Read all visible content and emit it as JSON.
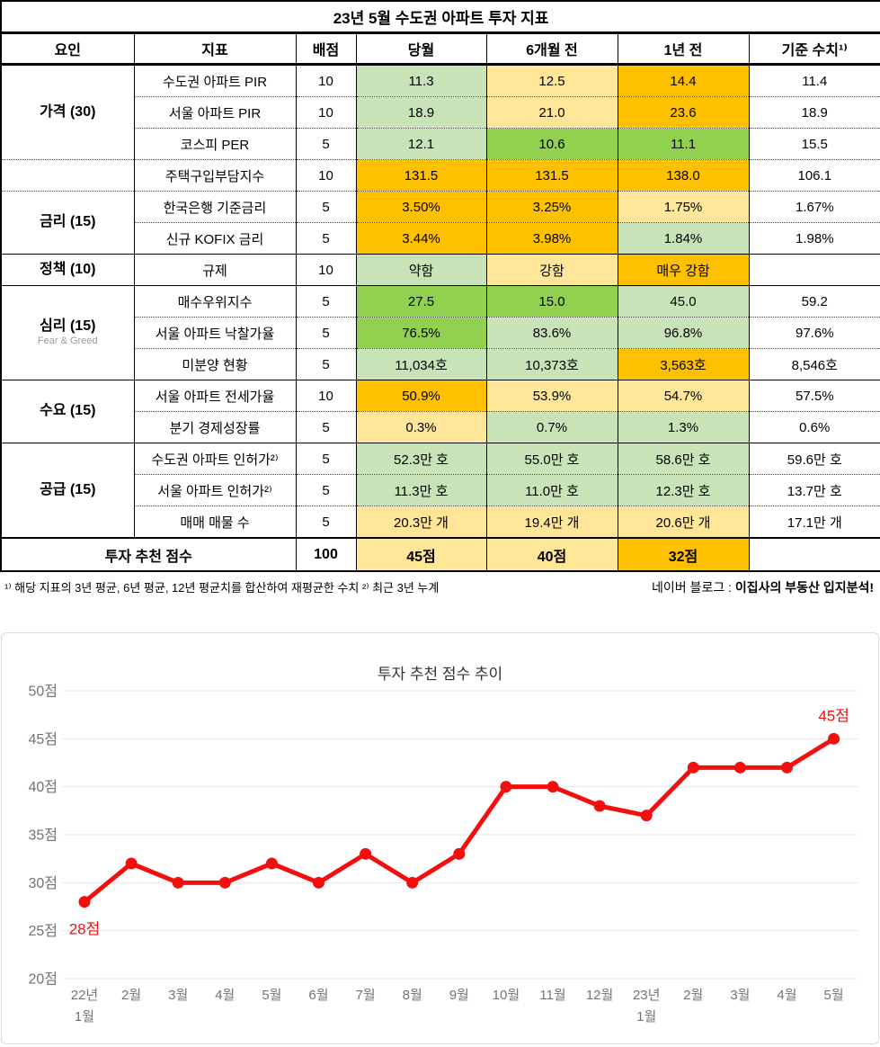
{
  "colors": {
    "green": "#92d050",
    "light_green": "#c9e3b9",
    "light_yellow": "#ffe699",
    "orange": "#ffc000",
    "none": "#ffffff"
  },
  "table": {
    "title": "23년 5월 수도권 아파트 투자 지표",
    "columns": [
      "요인",
      "지표",
      "배점",
      "당월",
      "6개월 전",
      "1년 전",
      "기준 수치¹⁾"
    ],
    "rows": [
      {
        "factor": {
          "label": "가격 (30)",
          "rowspan": 3
        },
        "indicator": "수도권 아파트 PIR",
        "points": "10",
        "values": [
          {
            "text": "11.3",
            "color": "light_green"
          },
          {
            "text": "12.5",
            "color": "light_yellow"
          },
          {
            "text": "14.4",
            "color": "orange"
          }
        ],
        "base": "11.4",
        "sep": "dotted"
      },
      {
        "indicator": "서울 아파트 PIR",
        "points": "10",
        "values": [
          {
            "text": "18.9",
            "color": "light_green"
          },
          {
            "text": "21.0",
            "color": "light_yellow"
          },
          {
            "text": "23.6",
            "color": "orange"
          }
        ],
        "base": "18.9",
        "sep": "dotted"
      },
      {
        "indicator": "코스피 PER",
        "points": "5",
        "values": [
          {
            "text": "12.1",
            "color": "light_green"
          },
          {
            "text": "10.6",
            "color": "green"
          },
          {
            "text": "11.1",
            "color": "green"
          }
        ],
        "base": "15.5",
        "sep": "dotted"
      },
      {
        "factor": {
          "label": "",
          "rowspan": 1
        },
        "indicator": "주택구입부담지수",
        "points": "10",
        "values": [
          {
            "text": "131.5",
            "color": "orange"
          },
          {
            "text": "131.5",
            "color": "orange"
          },
          {
            "text": "138.0",
            "color": "orange"
          }
        ],
        "base": "106.1",
        "sep": "dotted"
      },
      {
        "factor": {
          "label": "금리 (15)",
          "rowspan": 2
        },
        "indicator": "한국은행 기준금리",
        "points": "5",
        "values": [
          {
            "text": "3.50%",
            "color": "orange"
          },
          {
            "text": "3.25%",
            "color": "orange"
          },
          {
            "text": "1.75%",
            "color": "light_yellow"
          }
        ],
        "base": "1.67%",
        "sep": "dotted"
      },
      {
        "indicator": "신규 KOFIX 금리",
        "points": "5",
        "values": [
          {
            "text": "3.44%",
            "color": "orange"
          },
          {
            "text": "3.98%",
            "color": "orange"
          },
          {
            "text": "1.84%",
            "color": "light_green"
          }
        ],
        "base": "1.98%",
        "sep": "solid"
      },
      {
        "factor": {
          "label": "정책 (10)",
          "rowspan": 1
        },
        "indicator": "규제",
        "points": "10",
        "values": [
          {
            "text": "약함",
            "color": "light_green"
          },
          {
            "text": "강함",
            "color": "light_yellow"
          },
          {
            "text": "매우 강함",
            "color": "orange"
          }
        ],
        "base": "",
        "sep": "solid"
      },
      {
        "factor": {
          "label": "심리 (15)",
          "sub": "Fear & Greed",
          "rowspan": 3
        },
        "indicator": "매수우위지수",
        "points": "5",
        "values": [
          {
            "text": "27.5",
            "color": "green"
          },
          {
            "text": "15.0",
            "color": "green"
          },
          {
            "text": "45.0",
            "color": "light_green"
          }
        ],
        "base": "59.2",
        "sep": "dotted"
      },
      {
        "indicator": "서울 아파트 낙찰가율",
        "points": "5",
        "values": [
          {
            "text": "76.5%",
            "color": "green"
          },
          {
            "text": "83.6%",
            "color": "light_green"
          },
          {
            "text": "96.8%",
            "color": "light_green"
          }
        ],
        "base": "97.6%",
        "sep": "dotted"
      },
      {
        "indicator": "미분양 현황",
        "points": "5",
        "values": [
          {
            "text": "11,034호",
            "color": "light_green"
          },
          {
            "text": "10,373호",
            "color": "light_green"
          },
          {
            "text": "3,563호",
            "color": "orange"
          }
        ],
        "base": "8,546호",
        "sep": "solid"
      },
      {
        "factor": {
          "label": "수요 (15)",
          "rowspan": 2
        },
        "indicator": "서울 아파트 전세가율",
        "points": "10",
        "values": [
          {
            "text": "50.9%",
            "color": "orange"
          },
          {
            "text": "53.9%",
            "color": "light_yellow"
          },
          {
            "text": "54.7%",
            "color": "light_yellow"
          }
        ],
        "base": "57.5%",
        "sep": "dotted"
      },
      {
        "indicator": "분기 경제성장률",
        "points": "5",
        "values": [
          {
            "text": "0.3%",
            "color": "light_yellow"
          },
          {
            "text": "0.7%",
            "color": "light_green"
          },
          {
            "text": "1.3%",
            "color": "light_green"
          }
        ],
        "base": "0.6%",
        "sep": "solid"
      },
      {
        "factor": {
          "label": "공급 (15)",
          "rowspan": 3
        },
        "indicator": "수도권 아파트 인허가²⁾",
        "points": "5",
        "values": [
          {
            "text": "52.3만 호",
            "color": "light_green"
          },
          {
            "text": "55.0만 호",
            "color": "light_green"
          },
          {
            "text": "58.6만 호",
            "color": "light_green"
          }
        ],
        "base": "59.6만 호",
        "sep": "dotted"
      },
      {
        "indicator": "서울 아파트 인허가²⁾",
        "points": "5",
        "values": [
          {
            "text": "11.3만 호",
            "color": "light_green"
          },
          {
            "text": "11.0만 호",
            "color": "light_green"
          },
          {
            "text": "12.3만 호",
            "color": "light_green"
          }
        ],
        "base": "13.7만 호",
        "sep": "dotted"
      },
      {
        "indicator": "매매 매물 수",
        "points": "5",
        "values": [
          {
            "text": "20.3만 개",
            "color": "light_yellow"
          },
          {
            "text": "19.4만 개",
            "color": "light_yellow"
          },
          {
            "text": "20.6만 개",
            "color": "light_yellow"
          }
        ],
        "base": "17.1만 개",
        "sep": "thick"
      }
    ],
    "total": {
      "label": "투자 추천 점수",
      "points": "100",
      "values": [
        {
          "text": "45점",
          "color": "light_yellow"
        },
        {
          "text": "40점",
          "color": "light_yellow"
        },
        {
          "text": "32점",
          "color": "orange"
        }
      ],
      "base": ""
    }
  },
  "footnote": {
    "left": "¹⁾ 해당 지표의 3년 평균, 6년 평균, 12년 평균치를 합산하여 재평균한 수치 ²⁾ 최근 3년 누계",
    "right_prefix": "네이버 블로그 : ",
    "right_bold": "이집사의 부동산 입지분석!"
  },
  "chart_data": {
    "type": "line",
    "title": "투자 추천 점수 추이",
    "x": [
      "22년 1월",
      "2월",
      "3월",
      "4월",
      "5월",
      "6월",
      "7월",
      "8월",
      "9월",
      "10월",
      "11월",
      "12월",
      "23년 1월",
      "2월",
      "3월",
      "4월",
      "5월"
    ],
    "values": [
      28,
      32,
      30,
      30,
      32,
      30,
      33,
      30,
      33,
      40,
      40,
      38,
      37,
      42,
      42,
      42,
      45
    ],
    "ylabel": "",
    "xlabel": "",
    "ylim": [
      20,
      50
    ],
    "ytick_step": 5,
    "ytick_suffix": "점",
    "grid": true,
    "legend": "none",
    "line_color": "#f40f0f",
    "grid_color": "#e7e7e7",
    "axis_text_color": "#737373",
    "annotations": [
      {
        "index": 0,
        "text": "28점",
        "position": "below"
      },
      {
        "index": 16,
        "text": "45점",
        "position": "above"
      }
    ]
  }
}
